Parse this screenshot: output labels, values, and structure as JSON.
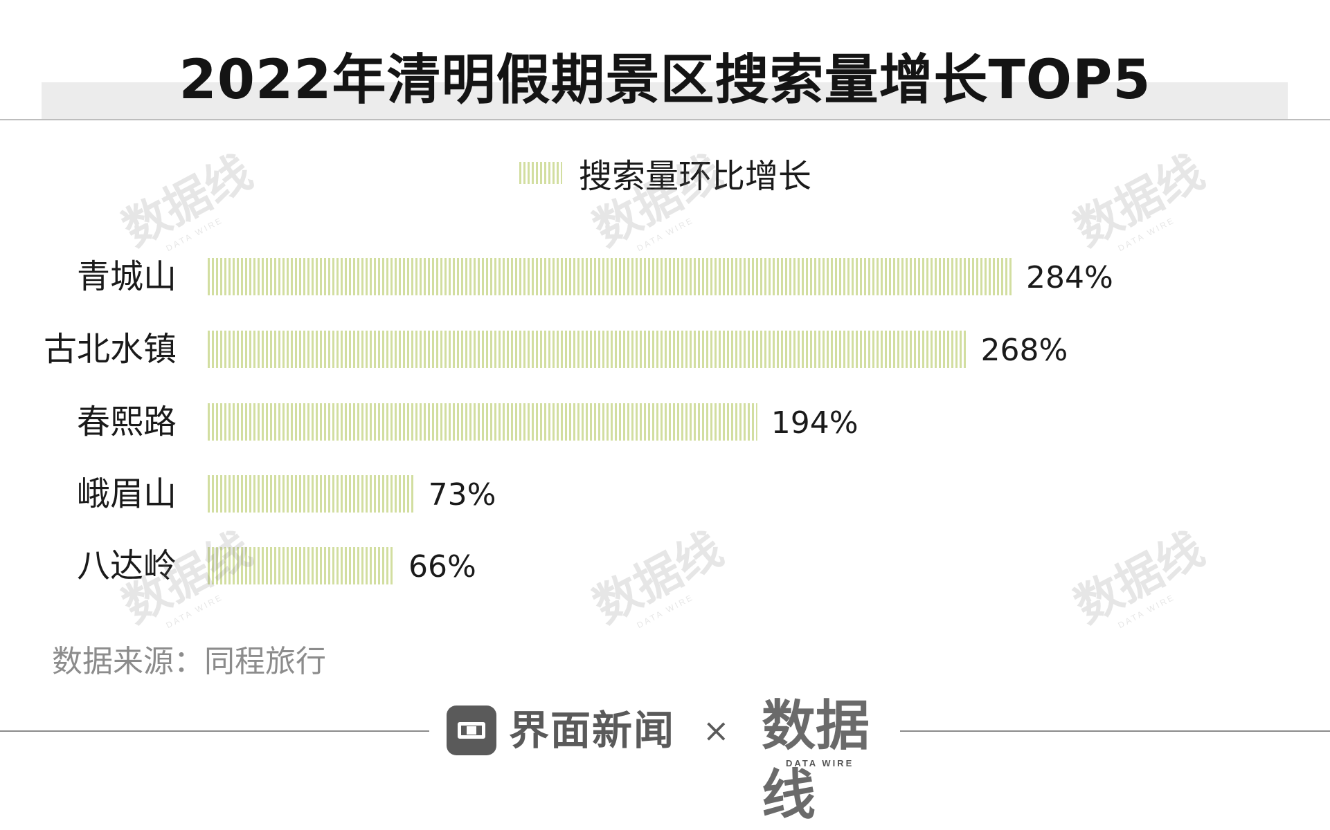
{
  "header": {
    "title": "2022年清明假期景区搜索量增长TOP5"
  },
  "legend": {
    "label": "搜索量环比增长"
  },
  "chart_data": {
    "type": "bar",
    "orientation": "horizontal",
    "title": "2022年清明假期景区搜索量增长TOP5",
    "categories": [
      "青城山",
      "古北水镇",
      "春熙路",
      "峨眉山",
      "八达岭"
    ],
    "series": [
      {
        "name": "搜索量环比增长",
        "values": [
          284,
          268,
          194,
          73,
          66
        ],
        "labels": [
          "284%",
          "268%",
          "194%",
          "73%",
          "66%"
        ]
      }
    ],
    "unit": "%",
    "xlim": [
      0,
      284
    ],
    "grid": false,
    "legend_position": "top-center",
    "bar_color": "#d2dea0"
  },
  "source": {
    "text": "数据来源：同程旅行"
  },
  "footer": {
    "partner_name": "界面新闻",
    "separator": "×",
    "brand_name": "数据线",
    "brand_sub": "DATA WIRE"
  },
  "watermark": {
    "main": "数据线",
    "sub": "DATA WIRE"
  },
  "colors": {
    "bar": "#d2dea0",
    "title_band": "#ececec",
    "source_text": "#8c8c8c",
    "footer_gray": "#5a5a5a"
  }
}
